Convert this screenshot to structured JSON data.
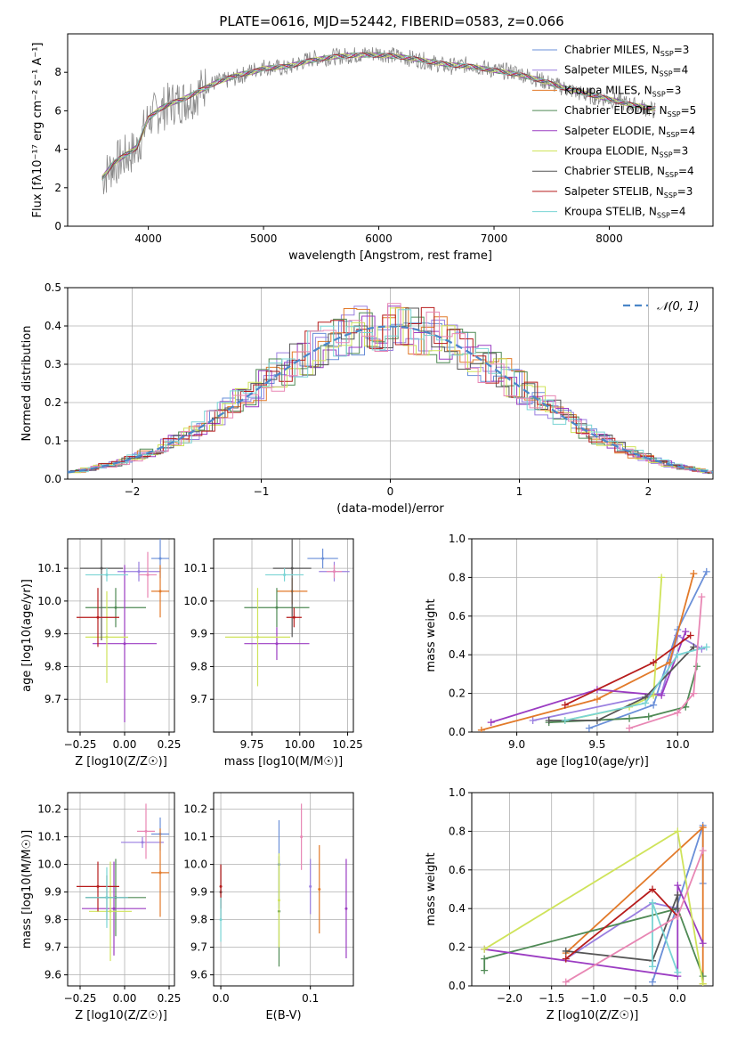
{
  "figure_title": "PLATE=0616, MJD=52442, FIBERID=0583, z=0.066",
  "colors": [
    "#6a8fd8",
    "#9a7fe0",
    "#e27a2a",
    "#4f8a55",
    "#9b3cc2",
    "#cfe35a",
    "#555555",
    "#b71c1c",
    "#79d4d4",
    "#e887b4"
  ],
  "chart_data": [
    {
      "id": "spectrum",
      "type": "line",
      "xlabel": "wavelength [Angstrom, rest frame]",
      "ylabel": "Flux [fλ10⁻¹⁷ erg cm⁻² s⁻¹ A⁻¹]",
      "xlim": [
        3300,
        8900
      ],
      "ylim": [
        0,
        10
      ],
      "xticks": [
        "4000",
        "5000",
        "6000",
        "7000",
        "8000"
      ],
      "yticks": [
        "0",
        "2",
        "4",
        "6",
        "8"
      ],
      "grid": false,
      "legend_position": "top-right",
      "x": [
        3600,
        3700,
        3800,
        3900,
        4000,
        4100,
        4200,
        4300,
        4400,
        4500,
        4600,
        4700,
        4800,
        4900,
        5000,
        5200,
        5400,
        5600,
        5800,
        6000,
        6200,
        6400,
        6600,
        6800,
        7000,
        7200,
        7400,
        7600,
        7800,
        8000,
        8200,
        8400
      ],
      "observed_flux": [
        2.5,
        3.2,
        3.6,
        4.0,
        5.6,
        6.0,
        6.4,
        6.5,
        6.8,
        7.3,
        7.5,
        7.6,
        7.8,
        8.1,
        8.3,
        8.2,
        8.7,
        8.8,
        8.9,
        9.0,
        8.8,
        8.6,
        8.3,
        8.4,
        8.1,
        8.0,
        7.6,
        7.2,
        6.8,
        6.6,
        6.3,
        6.0
      ],
      "model_flux": [
        2.5,
        3.3,
        3.7,
        4.1,
        5.6,
        6.1,
        6.4,
        6.6,
        6.9,
        7.2,
        7.5,
        7.7,
        7.9,
        8.0,
        8.2,
        8.3,
        8.6,
        8.8,
        8.9,
        8.9,
        8.8,
        8.6,
        8.4,
        8.3,
        8.1,
        7.9,
        7.6,
        7.2,
        6.9,
        6.6,
        6.3,
        6.1
      ],
      "legend": [
        {
          "label": "Chabrier MILES, N",
          "sub": "SSP",
          "suffix": "=3"
        },
        {
          "label": "Salpeter MILES, N",
          "sub": "SSP",
          "suffix": "=4"
        },
        {
          "label": "Kroupa MILES, N",
          "sub": "SSP",
          "suffix": "=3"
        },
        {
          "label": "Chabrier ELODIE, N",
          "sub": "SSP",
          "suffix": "=5"
        },
        {
          "label": "Salpeter ELODIE, N",
          "sub": "SSP",
          "suffix": "=4"
        },
        {
          "label": "Kroupa ELODIE, N",
          "sub": "SSP",
          "suffix": "=3"
        },
        {
          "label": "Chabrier STELIB, N",
          "sub": "SSP",
          "suffix": "=4"
        },
        {
          "label": "Salpeter STELIB, N",
          "sub": "SSP",
          "suffix": "=3"
        },
        {
          "label": "Kroupa STELIB, N",
          "sub": "SSP",
          "suffix": "=4"
        }
      ]
    },
    {
      "id": "residuals",
      "type": "line",
      "xlabel": "(data-model)/error",
      "ylabel": "Normed distribution",
      "xlim": [
        -2.5,
        2.5
      ],
      "ylim": [
        0,
        0.5
      ],
      "xticks": [
        "−2",
        "−1",
        "0",
        "1",
        "2"
      ],
      "yticks": [
        "0.0",
        "0.1",
        "0.2",
        "0.3",
        "0.4",
        "0.5"
      ],
      "grid": true,
      "legend_position": "top-right",
      "legend_label": "𝒩(0, 1)",
      "gaussian": {
        "mean": 0,
        "sigma": 1
      }
    },
    {
      "id": "age_vs_Z",
      "type": "scatter",
      "xlabel": "Z [log10(Z/Z☉)]",
      "ylabel": "age [log10(age/yr)]",
      "xlim": [
        -0.32,
        0.28
      ],
      "ylim": [
        9.6,
        10.19
      ],
      "xticks": [
        "−0.25",
        "0.00",
        "0.25"
      ],
      "yticks": [
        "9.7",
        "9.8",
        "9.9",
        "10.0",
        "10.1"
      ],
      "grid": true,
      "points": [
        {
          "x": 0.2,
          "y": 10.13,
          "xerr": 0.05,
          "yerr": 0.06
        },
        {
          "x": 0.08,
          "y": 10.09,
          "xerr": 0.12,
          "yerr": 0.03
        },
        {
          "x": 0.2,
          "y": 10.03,
          "xerr": 0.05,
          "yerr": 0.08
        },
        {
          "x": -0.05,
          "y": 9.98,
          "xerr": 0.17,
          "yerr": 0.06
        },
        {
          "x": 0.0,
          "y": 9.87,
          "xerr": 0.18,
          "yerr": 0.24
        },
        {
          "x": -0.1,
          "y": 9.89,
          "xerr": 0.12,
          "yerr": 0.14
        },
        {
          "x": -0.13,
          "y": 10.1,
          "xerr": 0.12,
          "yerr": 0.22
        },
        {
          "x": -0.15,
          "y": 9.95,
          "xerr": 0.12,
          "yerr": 0.09
        },
        {
          "x": -0.1,
          "y": 10.08,
          "xerr": 0.12,
          "yerr": 0.02
        },
        {
          "x": 0.13,
          "y": 10.08,
          "xerr": 0.05,
          "yerr": 0.07
        }
      ]
    },
    {
      "id": "age_vs_mass",
      "type": "scatter",
      "xlabel": "mass [log10(M/M☉)]",
      "ylabel": "",
      "xlim": [
        9.55,
        10.28
      ],
      "ylim": [
        9.6,
        10.19
      ],
      "xticks": [
        "9.75",
        "10.00",
        "10.25"
      ],
      "yticks": [
        "9.7",
        "9.8",
        "9.9",
        "10.0",
        "10.1"
      ],
      "grid": true,
      "points": [
        {
          "x": 10.12,
          "y": 10.13,
          "xerr": 0.08,
          "yerr": 0.03
        },
        {
          "x": 10.18,
          "y": 10.09,
          "xerr": 0.08,
          "yerr": 0.03
        },
        {
          "x": 9.96,
          "y": 10.03,
          "xerr": 0.08,
          "yerr": 0.04
        },
        {
          "x": 9.88,
          "y": 9.98,
          "xerr": 0.17,
          "yerr": 0.06
        },
        {
          "x": 9.88,
          "y": 9.87,
          "xerr": 0.17,
          "yerr": 0.05
        },
        {
          "x": 9.78,
          "y": 9.89,
          "xerr": 0.17,
          "yerr": 0.15
        },
        {
          "x": 9.96,
          "y": 10.1,
          "xerr": 0.1,
          "yerr": 0.21
        },
        {
          "x": 9.97,
          "y": 9.95,
          "xerr": 0.04,
          "yerr": 0.03
        },
        {
          "x": 9.92,
          "y": 10.08,
          "xerr": 0.1,
          "yerr": 0.02
        },
        {
          "x": 10.18,
          "y": 10.09,
          "xerr": 0.04,
          "yerr": 0.02
        }
      ]
    },
    {
      "id": "weight_vs_age",
      "type": "line",
      "xlabel": "age [log10(age/yr)]",
      "ylabel": "mass weight",
      "xlim": [
        8.72,
        10.22
      ],
      "ylim": [
        0,
        1.0
      ],
      "xticks": [
        "9.0",
        "9.5",
        "10.0"
      ],
      "yticks": [
        "0.0",
        "0.2",
        "0.4",
        "0.6",
        "0.8",
        "1.0"
      ],
      "grid": true,
      "series": [
        {
          "x": [
            9.45,
            9.85,
            10.0,
            10.18
          ],
          "y": [
            0.02,
            0.14,
            0.53,
            0.83
          ]
        },
        {
          "x": [
            9.1,
            9.9,
            10.0,
            10.15
          ],
          "y": [
            0.06,
            0.2,
            0.5,
            0.43
          ]
        },
        {
          "x": [
            8.78,
            9.5,
            9.95,
            10.1
          ],
          "y": [
            0.01,
            0.17,
            0.36,
            0.82
          ]
        },
        {
          "x": [
            9.2,
            9.7,
            9.82,
            10.05,
            10.12
          ],
          "y": [
            0.05,
            0.07,
            0.08,
            0.13,
            0.34
          ]
        },
        {
          "x": [
            8.84,
            9.5,
            9.9,
            10.05
          ],
          "y": [
            0.05,
            0.22,
            0.19,
            0.52
          ]
        },
        {
          "x": [
            9.3,
            9.7,
            9.85,
            9.9
          ],
          "y": [
            0.06,
            0.13,
            0.19,
            0.8
          ]
        },
        {
          "x": [
            9.2,
            9.5,
            9.8,
            10.1
          ],
          "y": [
            0.06,
            0.06,
            0.18,
            0.44
          ]
        },
        {
          "x": [
            9.3,
            9.85,
            10.08
          ],
          "y": [
            0.14,
            0.36,
            0.5
          ]
        },
        {
          "x": [
            9.3,
            9.8,
            10.0,
            10.18
          ],
          "y": [
            0.06,
            0.15,
            0.4,
            0.44
          ]
        },
        {
          "x": [
            9.7,
            10.0,
            10.1,
            10.15
          ],
          "y": [
            0.02,
            0.1,
            0.2,
            0.7
          ]
        }
      ]
    },
    {
      "id": "mass_vs_Z",
      "type": "scatter",
      "xlabel": "Z [log10(Z/Z☉)]",
      "ylabel": "mass [log10(M/M☉)]",
      "xlim": [
        -0.32,
        0.28
      ],
      "ylim": [
        9.56,
        10.26
      ],
      "xticks": [
        "−0.25",
        "0.00",
        "0.25"
      ],
      "yticks": [
        "9.6",
        "9.7",
        "9.8",
        "9.9",
        "10.0",
        "10.1",
        "10.2"
      ],
      "grid": true,
      "points": [
        {
          "x": 0.2,
          "y": 10.11,
          "xerr": 0.05,
          "yerr": 0.06
        },
        {
          "x": 0.1,
          "y": 10.08,
          "xerr": 0.12,
          "yerr": 0.02
        },
        {
          "x": 0.2,
          "y": 9.97,
          "xerr": 0.05,
          "yerr": 0.16
        },
        {
          "x": -0.05,
          "y": 9.88,
          "xerr": 0.17,
          "yerr": 0.14
        },
        {
          "x": -0.06,
          "y": 9.84,
          "xerr": 0.18,
          "yerr": 0.17
        },
        {
          "x": -0.08,
          "y": 9.83,
          "xerr": 0.12,
          "yerr": 0.18
        },
        {
          "x": -0.1,
          "y": 9.88,
          "xerr": 0.12,
          "yerr": 0.08
        },
        {
          "x": -0.15,
          "y": 9.92,
          "xerr": 0.12,
          "yerr": 0.09
        },
        {
          "x": -0.1,
          "y": 9.88,
          "xerr": 0.12,
          "yerr": 0.11
        },
        {
          "x": 0.12,
          "y": 10.12,
          "xerr": 0.05,
          "yerr": 0.1
        }
      ]
    },
    {
      "id": "mass_vs_ebv",
      "type": "scatter",
      "xlabel": "E(B-V)",
      "ylabel": "",
      "xlim": [
        -0.008,
        0.148
      ],
      "ylim": [
        9.56,
        10.26
      ],
      "xticks": [
        "0.0",
        "0.1"
      ],
      "yticks": [
        "9.6",
        "9.7",
        "9.8",
        "9.9",
        "10.0",
        "10.1",
        "10.2"
      ],
      "grid": true,
      "points": [
        {
          "x": 0.065,
          "y": 10.0,
          "yerr": 0.16
        },
        {
          "x": 0.1,
          "y": 9.92,
          "yerr": 0.1
        },
        {
          "x": 0.11,
          "y": 9.91,
          "yerr": 0.16
        },
        {
          "x": 0.065,
          "y": 9.83,
          "yerr": 0.2
        },
        {
          "x": 0.14,
          "y": 9.84,
          "yerr": 0.18
        },
        {
          "x": 0.065,
          "y": 9.87,
          "yerr": 0.17
        },
        {
          "x": 0.0,
          "y": 9.9,
          "yerr": 0.1
        },
        {
          "x": 0.0,
          "y": 9.92,
          "yerr": 0.08
        },
        {
          "x": 0.0,
          "y": 9.8,
          "yerr": 0.08
        },
        {
          "x": 0.09,
          "y": 10.1,
          "yerr": 0.12
        }
      ]
    },
    {
      "id": "weight_vs_Z",
      "type": "line",
      "xlabel": "Z [log10(Z/Z☉)]",
      "ylabel": "mass weight",
      "xlim": [
        -2.45,
        0.42
      ],
      "ylim": [
        0,
        1.0
      ],
      "xticks": [
        "−2.0",
        "−1.5",
        "−1.0",
        "−0.5",
        "0.0"
      ],
      "yticks": [
        "0.0",
        "0.2",
        "0.4",
        "0.6",
        "0.8",
        "1.0"
      ],
      "grid": true,
      "series": [
        {
          "x": [
            -0.3,
            0.3,
            0.3
          ],
          "y": [
            0.02,
            0.83,
            0.53
          ]
        },
        {
          "x": [
            -1.33,
            -0.3,
            0.0
          ],
          "y": [
            0.14,
            0.43,
            0.4
          ]
        },
        {
          "x": [
            -1.33,
            0.3,
            0.3
          ],
          "y": [
            0.17,
            0.82,
            0.01
          ]
        },
        {
          "x": [
            -2.3,
            -2.3,
            0.0,
            0.3
          ],
          "y": [
            0.08,
            0.14,
            0.4,
            0.05
          ]
        },
        {
          "x": [
            -2.3,
            0.0,
            0.0,
            0.3
          ],
          "y": [
            0.19,
            0.05,
            0.52,
            0.22
          ]
        },
        {
          "x": [
            -2.3,
            0.0,
            0.3
          ],
          "y": [
            0.19,
            0.8,
            0.01
          ]
        },
        {
          "x": [
            -1.33,
            -0.3,
            0.0,
            0.0
          ],
          "y": [
            0.18,
            0.13,
            0.47,
            0.4
          ]
        },
        {
          "x": [
            -1.33,
            -0.3,
            0.0
          ],
          "y": [
            0.14,
            0.5,
            0.36
          ]
        },
        {
          "x": [
            -0.3,
            -0.3,
            0.0
          ],
          "y": [
            0.1,
            0.43,
            0.07
          ]
        },
        {
          "x": [
            -1.33,
            0.0,
            0.3
          ],
          "y": [
            0.02,
            0.36,
            0.7
          ]
        }
      ]
    }
  ]
}
